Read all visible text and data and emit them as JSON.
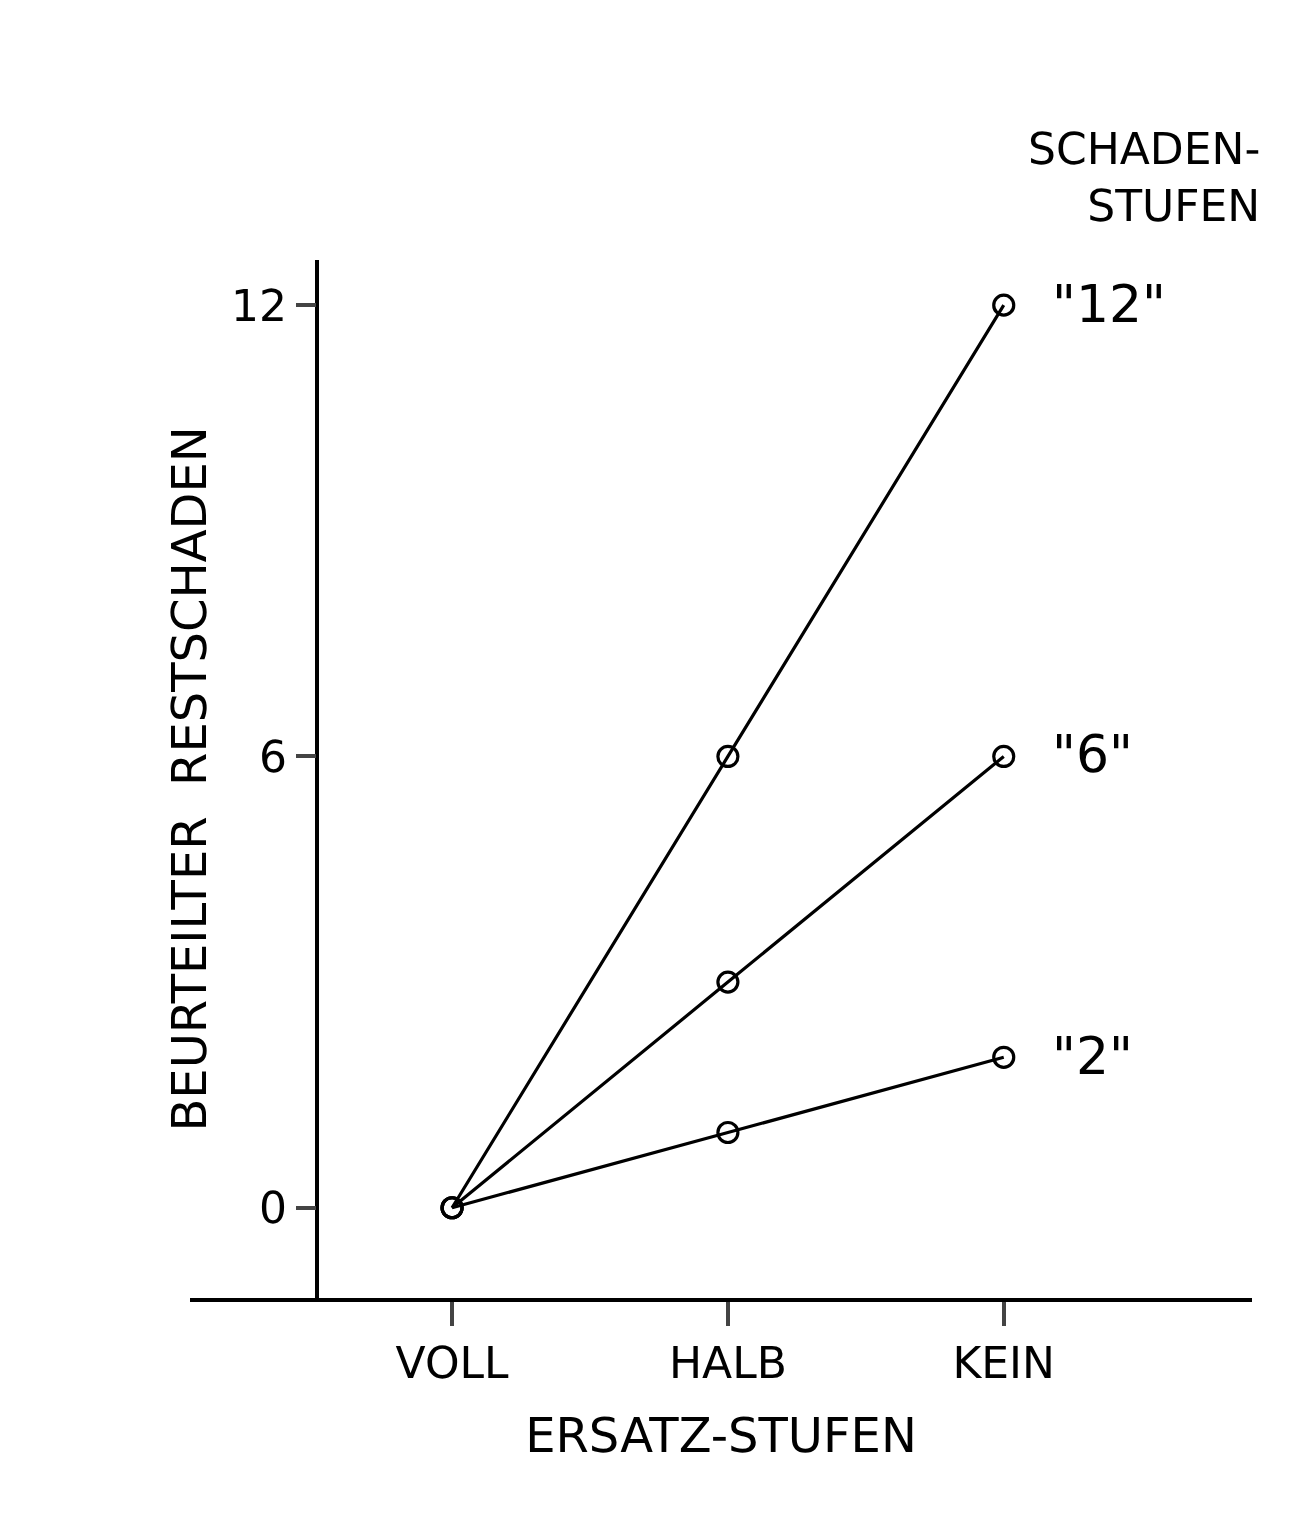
{
  "chart_data": {
    "type": "line",
    "xlabel": "ERSATZ-STUFEN",
    "ylabel": "BEURTEILTER  RESTSCHADEN",
    "legend_title": "SCHADEN-STUFEN",
    "categories": [
      "VOLL",
      "HALB",
      "KEIN"
    ],
    "series": [
      {
        "name": "\"12\"",
        "color": "#000000",
        "values": [
          0,
          6,
          12
        ]
      },
      {
        "name": "\"6\"",
        "color": "#000000",
        "values": [
          0,
          3,
          6
        ]
      },
      {
        "name": "\"2\"",
        "color": "#000000",
        "values": [
          0,
          1,
          2
        ]
      }
    ],
    "ylim": [
      -1.2,
      12.6
    ],
    "yticks": [
      0,
      6,
      12
    ],
    "marker": "circle",
    "line_style": "solid",
    "legend": false
  }
}
